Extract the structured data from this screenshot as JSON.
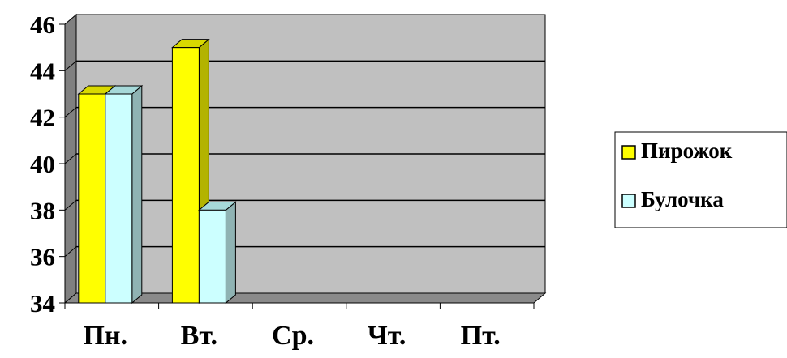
{
  "chart_data": {
    "type": "bar",
    "title": "",
    "xlabel": "",
    "ylabel": "",
    "categories": [
      "Пн.",
      "Вт.",
      "Ср.",
      "Чт.",
      "Пт."
    ],
    "series": [
      {
        "name": "Пирожок",
        "values": [
          43,
          45,
          null,
          null,
          null
        ]
      },
      {
        "name": "Булочка",
        "values": [
          43,
          38,
          null,
          null,
          null
        ]
      }
    ],
    "ylim": [
      34,
      46
    ],
    "y_ticks": [
      "34",
      "36",
      "38",
      "40",
      "42",
      "44",
      "46"
    ],
    "grid": true,
    "three_d": true,
    "legend_position": "right"
  },
  "colors": {
    "plot_back": "#c0c0c0",
    "plot_side": "#808080",
    "floor": "#8a8a8a",
    "gridline": "#000000",
    "series_front": [
      "#ffff00",
      "#ccffff"
    ],
    "series_top": [
      "#d9d900",
      "#a6d9d9"
    ],
    "series_side": [
      "#b3b300",
      "#8fb3b3"
    ]
  }
}
